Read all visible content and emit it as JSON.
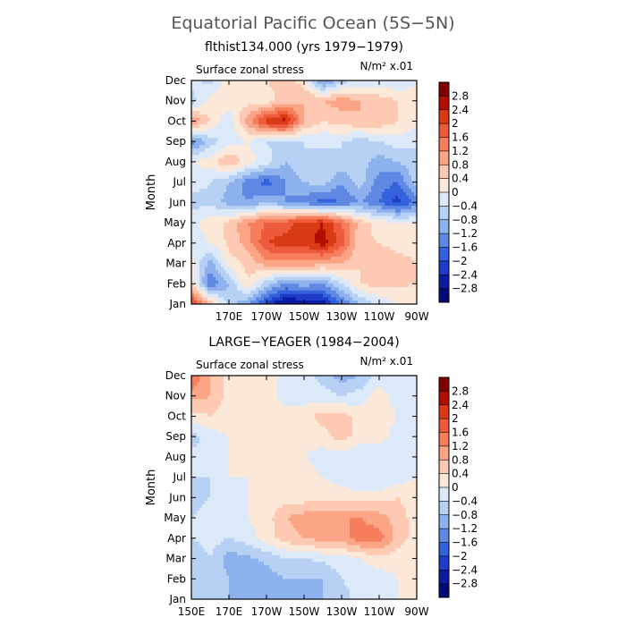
{
  "figure": {
    "title": "Equatorial Pacific Ocean (5S−5N)"
  },
  "colorbar": {
    "levels": [
      "2.8",
      "2.4",
      "2",
      "1.6",
      "1.2",
      "0.8",
      "0.4",
      "0",
      "−0.4",
      "−0.8",
      "−1.2",
      "−1.6",
      "−2",
      "−2.4",
      "−2.8"
    ],
    "colors": [
      "#7f0000",
      "#b30f00",
      "#d93a16",
      "#ee5a3c",
      "#f77e5c",
      "#fba486",
      "#fdc9b2",
      "#fbe8d8",
      "#dbe9f8",
      "#b6d1f3",
      "#8db1ec",
      "#5f88e3",
      "#3461dc",
      "#1e3cc8",
      "#0b1aa2",
      "#020b73"
    ]
  },
  "chart_data": [
    {
      "type": "heatmap",
      "title": "flthist134.000 (yrs 1979−1979)",
      "left_label": "Surface zonal stress",
      "units_label": "N/m² x.01",
      "ylabel": "Month",
      "xlabel": "",
      "y_ticks": [
        "Dec",
        "Nov",
        "Oct",
        "Sep",
        "Aug",
        "Jul",
        "Jun",
        "May",
        "Apr",
        "Mar",
        "Feb",
        "Jan"
      ],
      "x_ticks": [
        "170E",
        "170W",
        "150W",
        "130W",
        "110W",
        "90W"
      ],
      "x_tick_lon": [
        170,
        190,
        210,
        230,
        250,
        270
      ],
      "x_range": [
        150,
        270
      ],
      "lon": [
        150,
        160,
        170,
        180,
        190,
        200,
        210,
        220,
        230,
        240,
        250,
        260,
        270
      ],
      "months": [
        "Jan",
        "Feb",
        "Mar",
        "Apr",
        "May",
        "Jun",
        "Jul",
        "Aug",
        "Sep",
        "Oct",
        "Nov",
        "Dec"
      ],
      "values": [
        [
          2.2,
          0.8,
          -0.6,
          -1.2,
          -2.2,
          -2.9,
          -2.8,
          -2.6,
          -1.6,
          -0.8,
          -0.3,
          0.0,
          0.0
        ],
        [
          0.4,
          -1.6,
          -0.8,
          0.4,
          -0.6,
          -1.2,
          -1.0,
          -1.2,
          -0.4,
          0.4,
          0.6,
          0.5,
          0.4
        ],
        [
          0.1,
          -1.0,
          0.2,
          0.5,
          1.0,
          1.1,
          1.1,
          0.9,
          0.8,
          0.4,
          0.8,
          0.6,
          0.4
        ],
        [
          -0.2,
          0.0,
          0.5,
          1.0,
          2.0,
          2.2,
          2.2,
          2.6,
          1.8,
          0.5,
          0.4,
          0.2,
          0.2
        ],
        [
          -0.1,
          0.2,
          0.5,
          1.2,
          1.6,
          1.8,
          2.2,
          2.4,
          1.6,
          0.6,
          0.2,
          0.1,
          0.0
        ],
        [
          -0.6,
          -0.5,
          -1.0,
          -1.2,
          -0.8,
          -1.2,
          -1.4,
          -1.8,
          -1.6,
          -1.2,
          -1.6,
          -2.2,
          -1.4
        ],
        [
          -0.2,
          -0.4,
          -0.8,
          -1.4,
          -1.8,
          -1.2,
          -0.8,
          -0.6,
          -1.2,
          -0.6,
          -1.4,
          -1.6,
          -0.6
        ],
        [
          0.0,
          0.2,
          0.8,
          0.2,
          -0.2,
          -0.8,
          -0.4,
          -0.6,
          -0.4,
          -0.6,
          -1.0,
          -0.8,
          -0.4
        ],
        [
          -1.4,
          -0.6,
          -0.2,
          0.0,
          -0.4,
          -0.6,
          -0.4,
          -0.3,
          -0.4,
          -0.6,
          -0.4,
          -0.2,
          -0.4
        ],
        [
          1.2,
          0.4,
          -0.4,
          1.0,
          2.2,
          2.6,
          0.8,
          0.4,
          0.6,
          0.8,
          0.7,
          0.4,
          0.2
        ],
        [
          -0.6,
          0.2,
          0.4,
          0.2,
          0.2,
          0.6,
          0.8,
          0.8,
          1.0,
          0.8,
          0.6,
          0.4,
          0.2
        ],
        [
          -0.2,
          -0.6,
          0.3,
          0.2,
          0.4,
          0.6,
          0.2,
          -1.4,
          -0.6,
          -0.3,
          -0.2,
          -0.4,
          0.0
        ]
      ]
    },
    {
      "type": "heatmap",
      "title": "LARGE−YEAGER (1984−2004)",
      "left_label": "Surface zonal stress",
      "units_label": "N/m² x.01",
      "ylabel": "Month",
      "xlabel": "",
      "y_ticks": [
        "Dec",
        "Nov",
        "Oct",
        "Sep",
        "Aug",
        "Jul",
        "Jun",
        "May",
        "Apr",
        "Mar",
        "Feb",
        "Jan"
      ],
      "x_ticks": [
        "150E",
        "170E",
        "170W",
        "150W",
        "130W",
        "110W",
        "90W"
      ],
      "x_tick_lon": [
        150,
        170,
        190,
        210,
        230,
        250,
        270
      ],
      "x_range": [
        150,
        270
      ],
      "lon": [
        150,
        160,
        170,
        180,
        190,
        200,
        210,
        220,
        230,
        240,
        250,
        260,
        270
      ],
      "months": [
        "Jan",
        "Feb",
        "Mar",
        "Apr",
        "May",
        "Jun",
        "Jul",
        "Aug",
        "Sep",
        "Oct",
        "Nov",
        "Dec"
      ],
      "values": [
        [
          -0.4,
          -0.6,
          -0.8,
          -0.8,
          -1.2,
          -1.0,
          -1.2,
          -0.8,
          -0.6,
          -0.2,
          -0.2,
          0.0,
          0.0
        ],
        [
          -0.6,
          -0.5,
          -0.8,
          -1.2,
          -1.0,
          -0.8,
          -0.8,
          -0.8,
          -0.4,
          -0.2,
          -0.2,
          0.0,
          0.0
        ],
        [
          -0.8,
          -0.4,
          -1.0,
          -0.9,
          -0.7,
          -0.4,
          -0.4,
          -0.3,
          -0.2,
          0.0,
          0.2,
          0.2,
          0.0
        ],
        [
          -0.4,
          -0.2,
          -0.4,
          -0.2,
          0.2,
          0.6,
          0.8,
          1.0,
          1.0,
          1.4,
          1.4,
          0.6,
          0.2
        ],
        [
          -0.4,
          -0.2,
          -0.2,
          0.0,
          0.2,
          0.8,
          1.0,
          1.0,
          1.2,
          1.2,
          1.0,
          0.6,
          0.2
        ],
        [
          -0.6,
          -0.4,
          -0.2,
          0.0,
          0.2,
          0.2,
          0.2,
          0.3,
          0.2,
          0.2,
          0.2,
          0.4,
          0.2
        ],
        [
          -0.4,
          -0.4,
          0.0,
          0.0,
          0.2,
          0.2,
          0.2,
          0.0,
          -0.2,
          -0.4,
          -0.4,
          -0.2,
          0.0
        ],
        [
          -0.2,
          -0.4,
          0.0,
          0.2,
          0.2,
          0.2,
          0.0,
          -0.2,
          -0.2,
          -0.4,
          -0.4,
          -0.2,
          0.0
        ],
        [
          -0.6,
          -0.2,
          0.0,
          0.2,
          0.2,
          0.2,
          0.2,
          0.2,
          0.6,
          0.2,
          0.2,
          -0.2,
          0.0
        ],
        [
          0.2,
          0.4,
          0.2,
          0.0,
          0.2,
          0.2,
          0.2,
          0.6,
          0.6,
          0.2,
          0.2,
          0.0,
          0.0
        ],
        [
          1.0,
          0.8,
          0.2,
          0.2,
          0.2,
          -0.2,
          -0.2,
          -0.2,
          -0.4,
          -0.2,
          0.2,
          -0.2,
          0.0
        ],
        [
          1.6,
          0.8,
          0.2,
          0.2,
          0.2,
          -0.2,
          -0.2,
          -0.6,
          -1.0,
          -0.8,
          -0.2,
          -0.2,
          0.0
        ]
      ]
    }
  ]
}
